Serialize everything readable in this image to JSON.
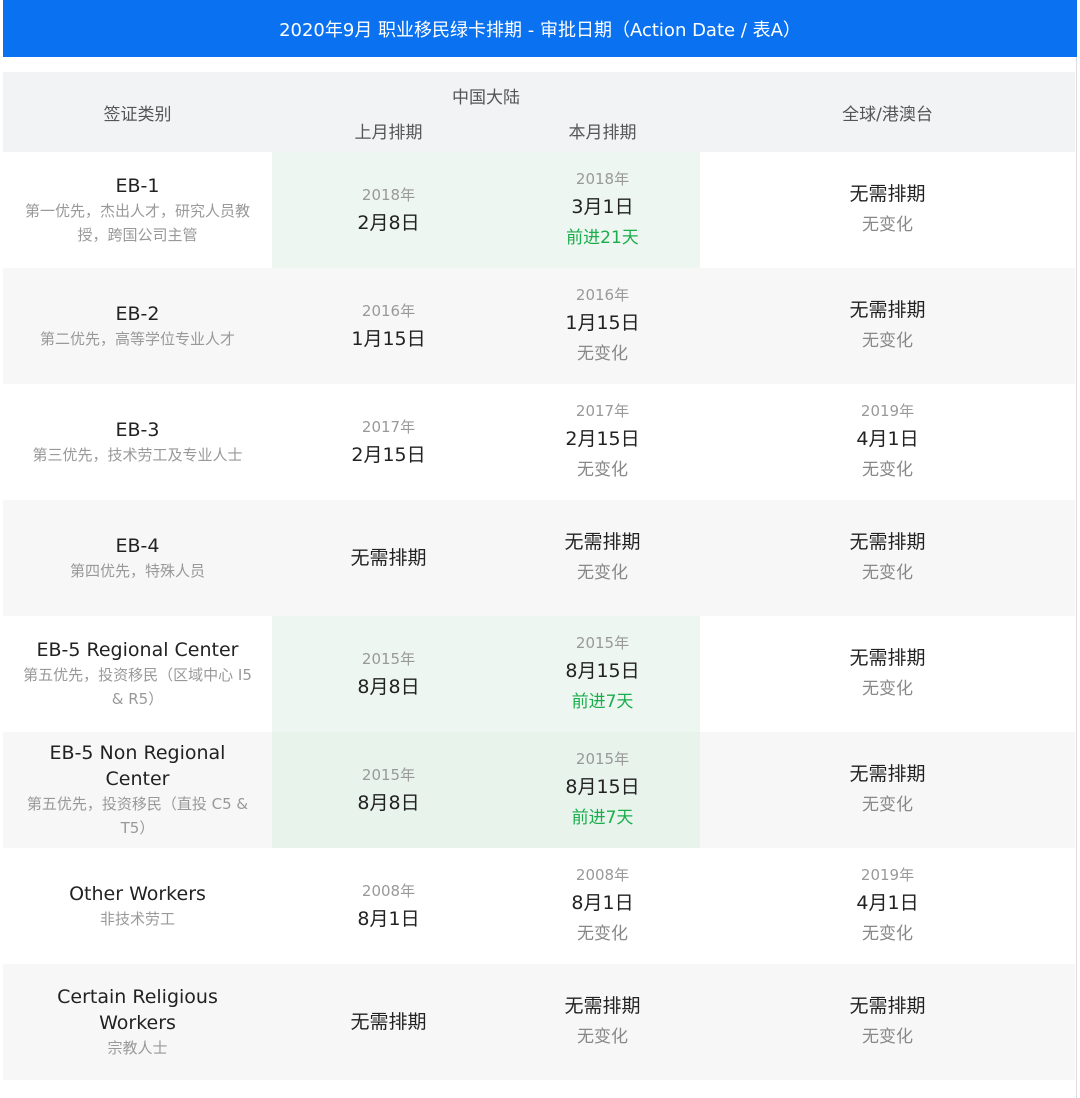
{
  "title": "2020年9月 职业移民绿卡排期 - 审批日期（Action Date / 表A）",
  "header": {
    "category": "签证类别",
    "china": "中国大陆",
    "last_month": "上月排期",
    "this_month": "本月排期",
    "world": "全球/港澳台"
  },
  "colors": {
    "banner": "#0a72f1",
    "advance": "#1aad4b",
    "highlight": "#edf6f0"
  },
  "rows": [
    {
      "name": "EB-1",
      "desc": "第一优先，杰出人才，研究人员教授，跨国公司主管",
      "highlight": true,
      "last": {
        "year": "2018年",
        "date": "2月8日"
      },
      "this": {
        "year": "2018年",
        "date": "3月1日",
        "change": "前进21天",
        "advance": true
      },
      "world": {
        "year": "",
        "date": "无需排期",
        "change": "无变化"
      }
    },
    {
      "name": "EB-2",
      "desc": "第二优先，高等学位专业人才",
      "highlight": false,
      "last": {
        "year": "2016年",
        "date": "1月15日"
      },
      "this": {
        "year": "2016年",
        "date": "1月15日",
        "change": "无变化",
        "advance": false
      },
      "world": {
        "year": "",
        "date": "无需排期",
        "change": "无变化"
      }
    },
    {
      "name": "EB-3",
      "desc": "第三优先，技术劳工及专业人士",
      "highlight": false,
      "last": {
        "year": "2017年",
        "date": "2月15日"
      },
      "this": {
        "year": "2017年",
        "date": "2月15日",
        "change": "无变化",
        "advance": false
      },
      "world": {
        "year": "2019年",
        "date": "4月1日",
        "change": "无变化"
      }
    },
    {
      "name": "EB-4",
      "desc": "第四优先，特殊人员",
      "highlight": false,
      "last": {
        "year": "",
        "date": "无需排期"
      },
      "this": {
        "year": "",
        "date": "无需排期",
        "change": "无变化",
        "advance": false
      },
      "world": {
        "year": "",
        "date": "无需排期",
        "change": "无变化"
      }
    },
    {
      "name": "EB-5 Regional Center",
      "desc": "第五优先，投资移民（区域中心 I5 & R5）",
      "highlight": true,
      "last": {
        "year": "2015年",
        "date": "8月8日"
      },
      "this": {
        "year": "2015年",
        "date": "8月15日",
        "change": "前进7天",
        "advance": true
      },
      "world": {
        "year": "",
        "date": "无需排期",
        "change": "无变化"
      }
    },
    {
      "name": "EB-5 Non Regional Center",
      "desc": "第五优先，投资移民（直投 C5 & T5）",
      "highlight": true,
      "last": {
        "year": "2015年",
        "date": "8月8日"
      },
      "this": {
        "year": "2015年",
        "date": "8月15日",
        "change": "前进7天",
        "advance": true
      },
      "world": {
        "year": "",
        "date": "无需排期",
        "change": "无变化"
      }
    },
    {
      "name": "Other Workers",
      "desc": "非技术劳工",
      "highlight": false,
      "last": {
        "year": "2008年",
        "date": "8月1日"
      },
      "this": {
        "year": "2008年",
        "date": "8月1日",
        "change": "无变化",
        "advance": false
      },
      "world": {
        "year": "2019年",
        "date": "4月1日",
        "change": "无变化"
      }
    },
    {
      "name": "Certain Religious Workers",
      "desc": "宗教人士",
      "highlight": false,
      "last": {
        "year": "",
        "date": "无需排期"
      },
      "this": {
        "year": "",
        "date": "无需排期",
        "change": "无变化",
        "advance": false
      },
      "world": {
        "year": "",
        "date": "无需排期",
        "change": "无变化"
      }
    }
  ]
}
